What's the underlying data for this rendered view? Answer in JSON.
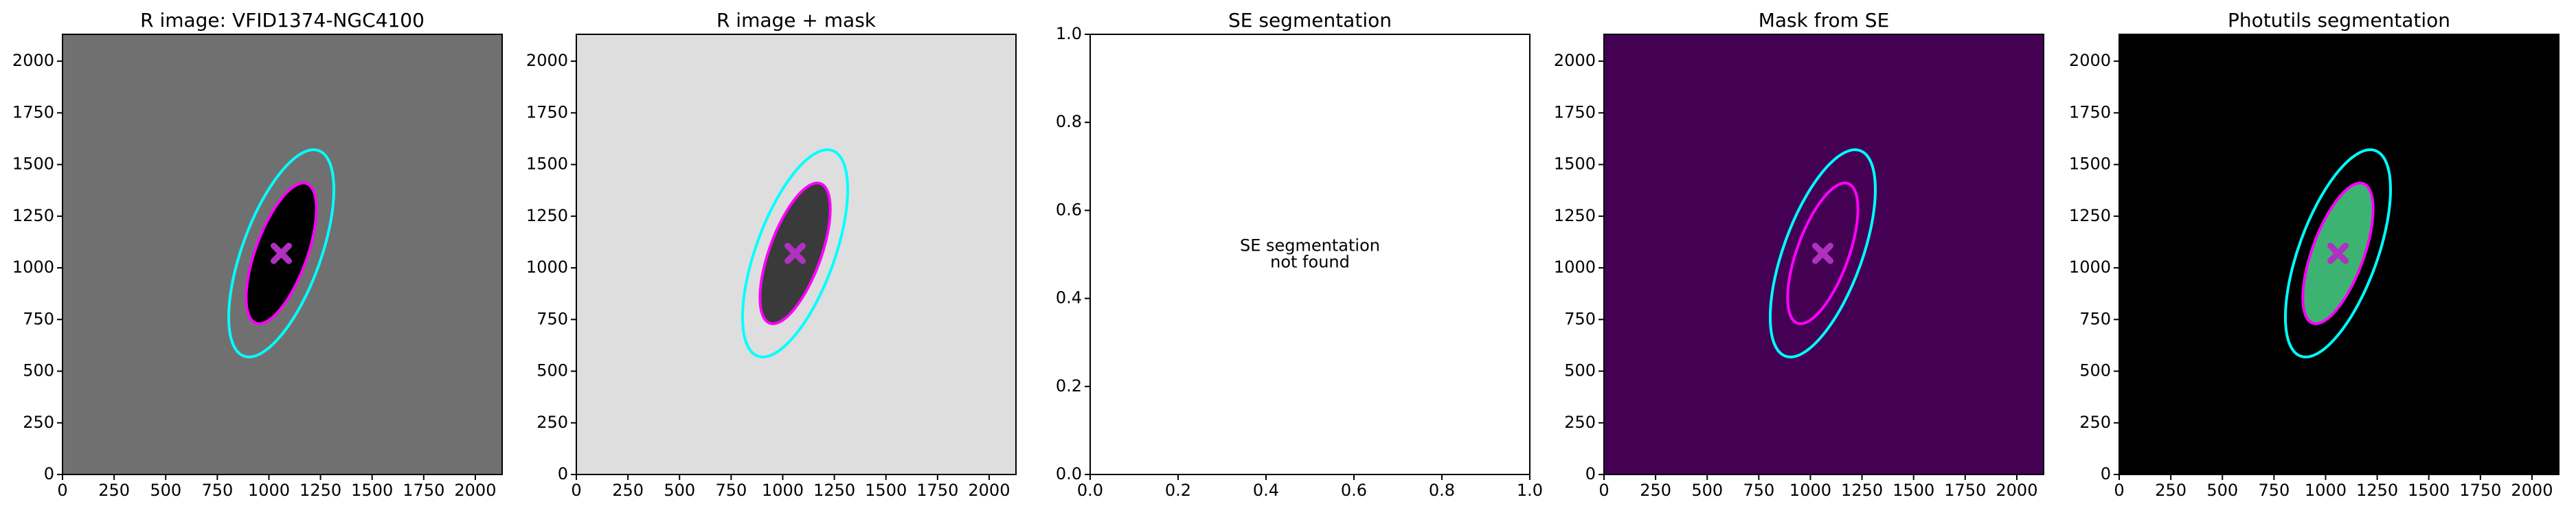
{
  "chart_data": [
    {
      "type": "image",
      "title": "R image: VFID1374-NGC4100",
      "xlim": [
        0,
        2130
      ],
      "ylim": [
        0,
        2130
      ],
      "xticks": [
        0,
        250,
        500,
        750,
        1000,
        1250,
        1500,
        1750,
        2000
      ],
      "yticks": [
        0,
        250,
        500,
        750,
        1000,
        1250,
        1500,
        1750,
        2000
      ],
      "background": "#707070",
      "ellipses": [
        {
          "color": "#00ffff",
          "center": [
            1060,
            1070
          ],
          "a": 530,
          "b": 190,
          "angle": 70
        },
        {
          "color": "#ff00ff",
          "fill": "#000000",
          "center": [
            1060,
            1070
          ],
          "a": 360,
          "b": 125,
          "angle": 70
        }
      ],
      "marker": {
        "x": 1060,
        "y": 1070,
        "color": "#b030c0"
      }
    },
    {
      "type": "image",
      "title": "R image + mask",
      "xlim": [
        0,
        2130
      ],
      "ylim": [
        0,
        2130
      ],
      "xticks": [
        0,
        250,
        500,
        750,
        1000,
        1250,
        1500,
        1750,
        2000
      ],
      "yticks": [
        0,
        250,
        500,
        750,
        1000,
        1250,
        1500,
        1750,
        2000
      ],
      "background": "#dedede",
      "ellipses": [
        {
          "color": "#00ffff",
          "center": [
            1060,
            1070
          ],
          "a": 530,
          "b": 190,
          "angle": 70
        },
        {
          "color": "#ff00ff",
          "fill": "#3a3a3a",
          "center": [
            1060,
            1070
          ],
          "a": 360,
          "b": 125,
          "angle": 70
        }
      ],
      "marker": {
        "x": 1060,
        "y": 1070,
        "color": "#b030c0"
      }
    },
    {
      "type": "empty",
      "title": "SE segmentation",
      "xlim": [
        0,
        1
      ],
      "ylim": [
        0,
        1
      ],
      "xticks": [
        {
          "value": 0,
          "label": "0.0"
        },
        0.2,
        0.4,
        0.6,
        0.8,
        {
          "value": 1,
          "label": "1.0"
        }
      ],
      "yticks": [
        {
          "value": 0,
          "label": "0.0"
        },
        0.2,
        0.4,
        0.6,
        0.8,
        {
          "value": 1,
          "label": "1.0"
        }
      ],
      "annotation": [
        "SE segmentation",
        "not found"
      ]
    },
    {
      "type": "image",
      "title": "Mask from SE",
      "xlim": [
        0,
        2130
      ],
      "ylim": [
        0,
        2130
      ],
      "xticks": [
        0,
        250,
        500,
        750,
        1000,
        1250,
        1500,
        1750,
        2000
      ],
      "yticks": [
        0,
        250,
        500,
        750,
        1000,
        1250,
        1500,
        1750,
        2000
      ],
      "background": "#440154",
      "ellipses": [
        {
          "color": "#00ffff",
          "center": [
            1060,
            1070
          ],
          "a": 530,
          "b": 190,
          "angle": 70
        },
        {
          "color": "#ff00ff",
          "center": [
            1060,
            1070
          ],
          "a": 360,
          "b": 125,
          "angle": 70
        }
      ],
      "marker": {
        "x": 1060,
        "y": 1070,
        "color": "#b030c0"
      }
    },
    {
      "type": "image",
      "title": "Photutils segmentation",
      "xlim": [
        0,
        2130
      ],
      "ylim": [
        0,
        2130
      ],
      "xticks": [
        0,
        250,
        500,
        750,
        1000,
        1250,
        1500,
        1750,
        2000
      ],
      "yticks": [
        0,
        250,
        500,
        750,
        1000,
        1250,
        1500,
        1750,
        2000
      ],
      "background": "#000000",
      "ellipses": [
        {
          "color": "#00ffff",
          "center": [
            1060,
            1070
          ],
          "a": 530,
          "b": 190,
          "angle": 70
        },
        {
          "color": "#ff00ff",
          "fill": "#3cb371",
          "center": [
            1060,
            1070
          ],
          "a": 360,
          "b": 125,
          "angle": 70
        }
      ],
      "marker": {
        "x": 1060,
        "y": 1070,
        "color": "#b030c0"
      }
    }
  ]
}
